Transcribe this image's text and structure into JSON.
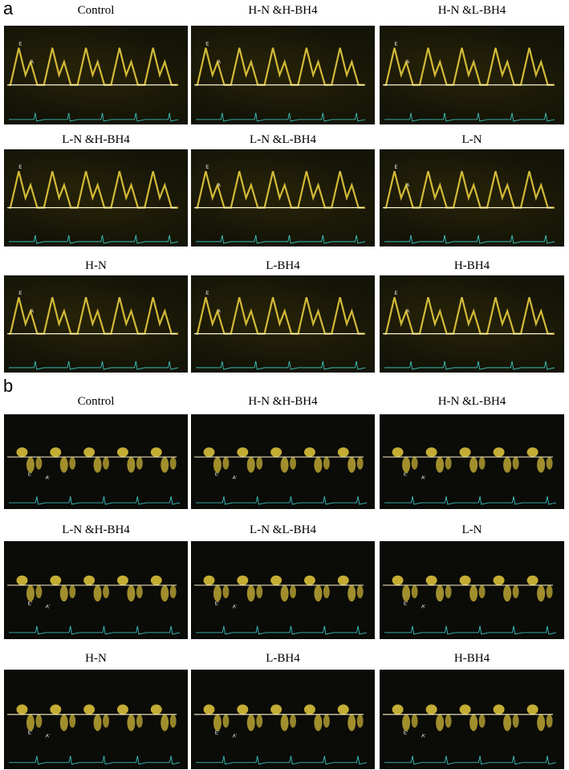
{
  "section_a": {
    "letter": "a",
    "panels": [
      {
        "title": "Control",
        "markers": [
          "E",
          "A"
        ]
      },
      {
        "title": "H-N &H-BH4",
        "markers": [
          "E",
          "A"
        ]
      },
      {
        "title": "H-N &L-BH4",
        "markers": [
          "E",
          "A"
        ]
      },
      {
        "title": "L-N &H-BH4",
        "markers": [
          "E"
        ]
      },
      {
        "title": "L-N &L-BH4",
        "markers": [
          "E",
          "A"
        ]
      },
      {
        "title": "L-N",
        "markers": [
          "E",
          "A"
        ]
      },
      {
        "title": "H-N",
        "markers": [
          "E",
          "A"
        ]
      },
      {
        "title": "L-BH4",
        "markers": [
          "E",
          "A"
        ]
      },
      {
        "title": "H-BH4",
        "markers": [
          "E",
          "A"
        ]
      }
    ]
  },
  "section_b": {
    "letter": "b",
    "panels": [
      {
        "title": "Control",
        "markers": [
          "E'",
          "A'"
        ]
      },
      {
        "title": "H-N &H-BH4",
        "markers": [
          "E'",
          "A'"
        ]
      },
      {
        "title": "H-N &L-BH4",
        "markers": [
          "E'",
          "A'"
        ]
      },
      {
        "title": "L-N &H-BH4",
        "markers": [
          "E'",
          "A'"
        ]
      },
      {
        "title": "L-N &L-BH4",
        "markers": [
          "E'",
          "A'"
        ]
      },
      {
        "title": "L-N",
        "markers": [
          "E'",
          "A'"
        ]
      },
      {
        "title": "H-N",
        "markers": [
          "E'",
          "A'"
        ]
      },
      {
        "title": "L-BH4",
        "markers": [
          "E'",
          "A'"
        ]
      },
      {
        "title": "H-BH4",
        "markers": [
          "E'",
          "A'"
        ]
      }
    ]
  },
  "colors": {
    "doppler_signal": "#f2d640",
    "baseline": "#fff6c8",
    "ecg_trace": "#3fd6d0"
  }
}
